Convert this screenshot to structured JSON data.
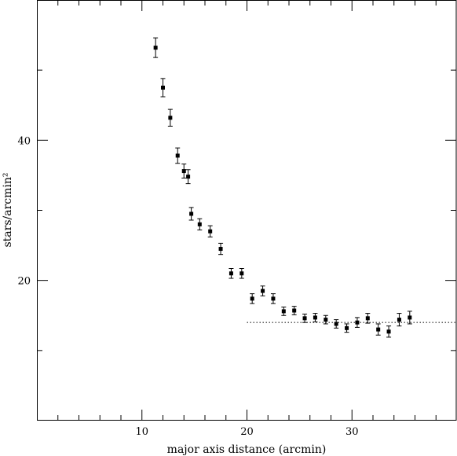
{
  "chart_data": {
    "type": "scatter",
    "title": "",
    "xlabel": "major axis distance (arcmin)",
    "ylabel": "stars/arcmin²",
    "xlim": [
      0,
      40
    ],
    "ylim": [
      0,
      60
    ],
    "x_major_ticks": [
      10,
      20,
      30
    ],
    "x_minor_step": 2,
    "y_major_ticks": [
      20,
      40
    ],
    "y_minor_step": 10,
    "grid": false,
    "series": [
      {
        "marker": "square",
        "error_bars": true,
        "points": [
          {
            "x": 11.3,
            "y": 53.2,
            "err": 1.4
          },
          {
            "x": 12.0,
            "y": 47.5,
            "err": 1.3
          },
          {
            "x": 12.7,
            "y": 43.2,
            "err": 1.2
          },
          {
            "x": 13.4,
            "y": 37.8,
            "err": 1.1
          },
          {
            "x": 14.0,
            "y": 35.6,
            "err": 1.0
          },
          {
            "x": 14.4,
            "y": 34.8,
            "err": 1.0
          },
          {
            "x": 14.7,
            "y": 29.5,
            "err": 0.9
          },
          {
            "x": 15.5,
            "y": 28.0,
            "err": 0.8
          },
          {
            "x": 16.5,
            "y": 27.0,
            "err": 0.8
          },
          {
            "x": 17.5,
            "y": 24.5,
            "err": 0.8
          },
          {
            "x": 18.5,
            "y": 21.0,
            "err": 0.7
          },
          {
            "x": 19.5,
            "y": 21.0,
            "err": 0.7
          },
          {
            "x": 20.5,
            "y": 17.4,
            "err": 0.7
          },
          {
            "x": 21.5,
            "y": 18.5,
            "err": 0.7
          },
          {
            "x": 22.5,
            "y": 17.4,
            "err": 0.7
          },
          {
            "x": 23.5,
            "y": 15.6,
            "err": 0.6
          },
          {
            "x": 24.5,
            "y": 15.7,
            "err": 0.6
          },
          {
            "x": 25.5,
            "y": 14.6,
            "err": 0.6
          },
          {
            "x": 26.5,
            "y": 14.7,
            "err": 0.6
          },
          {
            "x": 27.5,
            "y": 14.4,
            "err": 0.6
          },
          {
            "x": 28.5,
            "y": 13.8,
            "err": 0.6
          },
          {
            "x": 29.5,
            "y": 13.2,
            "err": 0.6
          },
          {
            "x": 30.5,
            "y": 14.0,
            "err": 0.7
          },
          {
            "x": 31.5,
            "y": 14.6,
            "err": 0.7
          },
          {
            "x": 32.5,
            "y": 13.0,
            "err": 0.8
          },
          {
            "x": 33.5,
            "y": 12.7,
            "err": 0.8
          },
          {
            "x": 34.5,
            "y": 14.4,
            "err": 0.9
          },
          {
            "x": 35.5,
            "y": 14.7,
            "err": 0.9
          }
        ]
      }
    ],
    "reference_line": {
      "y": 14.0,
      "x_start": 20,
      "x_end": 40,
      "style": "dotted"
    }
  }
}
